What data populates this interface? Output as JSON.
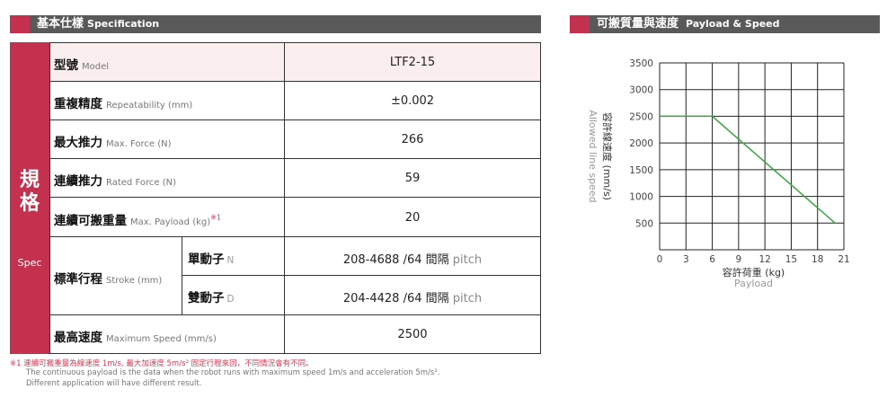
{
  "spec_header": {
    "zh": "基本仕樣",
    "en": "Specification"
  },
  "spec_side": {
    "zh1": "規",
    "zh2": "格",
    "en": "Spec"
  },
  "rows": [
    {
      "zh": "型號",
      "en": "Model",
      "value": "LTF2-15"
    },
    {
      "zh": "重複精度",
      "en": "Repeatability (mm)",
      "value": "±0.002"
    },
    {
      "zh": "最大推力",
      "en": "Max. Force (N)",
      "value": "266"
    },
    {
      "zh": "連續推力",
      "en": "Rated Force (N)",
      "value": "59"
    },
    {
      "zh": "連續可搬重量",
      "en": "Max. Payload (kg)",
      "sup": "※1",
      "value": "20"
    },
    {
      "zh": "標準行程",
      "en": "Stroke (mm)"
    },
    {
      "zh": "最高速度",
      "en": "Maximum Speed (mm/s)",
      "value": "2500"
    }
  ],
  "stroke": [
    {
      "zh": "單動子",
      "tag": "N",
      "value": "208-4688 /64 間隔",
      "pitch": "pitch"
    },
    {
      "zh": "雙動子",
      "tag": "D",
      "value": "204-4428 /64 間隔",
      "pitch": "pitch"
    }
  ],
  "notes": {
    "n1": "※1 連續可搬重量為線速度 1m/s, 最大加速度 5m/s² 固定行程來回，不同情況會有不同。",
    "n2": "The continuous payload is the data when the robot runs with maximum speed 1m/s and acceleration 5m/s².",
    "n3": "Different application will have different result."
  },
  "chart_header": {
    "zh": "可搬質量與速度",
    "en": "Payload & Speed"
  },
  "chart_data": {
    "type": "line",
    "title": "",
    "xlabel": "容許荷重 (kg)",
    "xlabel2": "Payload",
    "ylabel": "容許線速度 (mm/s)",
    "ylabel2": "Allowed line speed",
    "xlim": [
      0,
      21
    ],
    "ylim": [
      0,
      3500
    ],
    "xticks": [
      0,
      3,
      6,
      9,
      12,
      15,
      18,
      21
    ],
    "yticks": [
      500,
      1000,
      1500,
      2000,
      2500,
      3000,
      3500
    ],
    "grid": true,
    "series": [
      {
        "color": "#3aa640",
        "x": [
          0,
          6,
          20
        ],
        "y": [
          2500,
          2500,
          500
        ]
      }
    ]
  }
}
